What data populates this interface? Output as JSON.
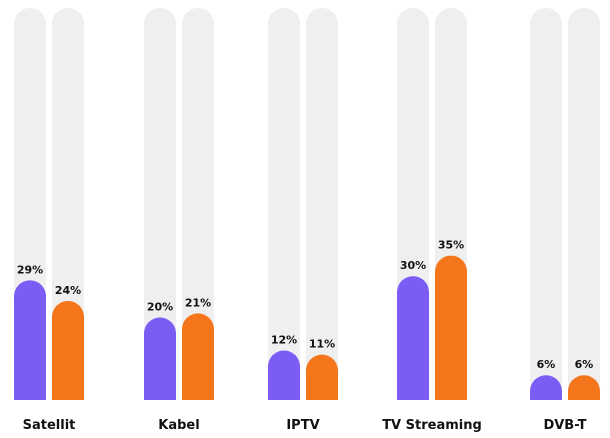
{
  "chart_data": {
    "type": "bar",
    "categories": [
      "Satellit",
      "Kabel",
      "IPTV",
      "TV Streaming",
      "DVB-T"
    ],
    "series": [
      {
        "color": "#7b5cf5",
        "values": [
          29,
          20,
          12,
          30,
          6
        ],
        "value_labels": [
          "29%",
          "20%",
          "12%",
          "30%",
          "6%"
        ]
      },
      {
        "color": "#f5761a",
        "values": [
          24,
          21,
          11,
          35,
          6
        ],
        "value_labels": [
          "24%",
          "21%",
          "11%",
          "35%",
          "6%"
        ]
      }
    ],
    "ylim": [
      0,
      95
    ]
  }
}
